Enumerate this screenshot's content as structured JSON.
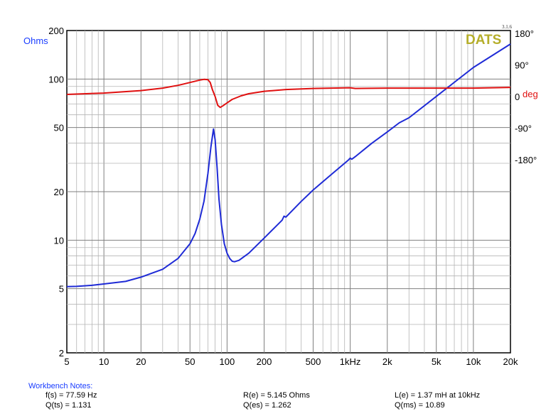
{
  "chart_data": {
    "type": "line",
    "x_scale": "log",
    "y_scale": "log",
    "left_axis_label": "Ohms",
    "right_axis_label": "deg",
    "version": "3.1.6",
    "logo": "DATS",
    "xlim": [
      5,
      20000
    ],
    "ylim": [
      2,
      200
    ],
    "phase_lim": [
      -180,
      180
    ],
    "x_ticks": [
      {
        "v": 5,
        "t": "5"
      },
      {
        "v": 10,
        "t": "10"
      },
      {
        "v": 20,
        "t": "20"
      },
      {
        "v": 50,
        "t": "50"
      },
      {
        "v": 100,
        "t": "100"
      },
      {
        "v": 200,
        "t": "200"
      },
      {
        "v": 500,
        "t": "500"
      },
      {
        "v": 1000,
        "t": "1kHz"
      },
      {
        "v": 2000,
        "t": "2k"
      },
      {
        "v": 5000,
        "t": "5k"
      },
      {
        "v": 10000,
        "t": "10k"
      },
      {
        "v": 20000,
        "t": "20k"
      }
    ],
    "y_ticks": [
      {
        "v": 2,
        "t": "2"
      },
      {
        "v": 5,
        "t": "5"
      },
      {
        "v": 10,
        "t": "10"
      },
      {
        "v": 20,
        "t": "20"
      },
      {
        "v": 50,
        "t": "50"
      },
      {
        "v": 100,
        "t": "100"
      },
      {
        "v": 200,
        "t": "200"
      }
    ],
    "phase_ticks": [
      {
        "v": 180,
        "t": "180°"
      },
      {
        "v": 90,
        "t": "90°"
      },
      {
        "v": 0,
        "t": "0"
      },
      {
        "v": -90,
        "t": "-90°"
      },
      {
        "v": -180,
        "t": "-180°"
      }
    ],
    "grid": true,
    "series": [
      {
        "axis": "left",
        "color": "#1f2bd6",
        "points": [
          [
            5,
            5.15
          ],
          [
            6,
            5.17
          ],
          [
            8,
            5.25
          ],
          [
            10,
            5.35
          ],
          [
            15,
            5.55
          ],
          [
            20,
            5.9
          ],
          [
            30,
            6.6
          ],
          [
            40,
            7.7
          ],
          [
            50,
            9.5
          ],
          [
            55,
            11
          ],
          [
            60,
            13.5
          ],
          [
            65,
            17.5
          ],
          [
            70,
            26
          ],
          [
            74,
            38
          ],
          [
            77.6,
            49
          ],
          [
            80,
            42
          ],
          [
            83,
            28
          ],
          [
            86,
            18
          ],
          [
            90,
            12.5
          ],
          [
            95,
            9.5
          ],
          [
            100,
            8.3
          ],
          [
            105,
            7.7
          ],
          [
            110,
            7.4
          ],
          [
            115,
            7.35
          ],
          [
            125,
            7.5
          ],
          [
            150,
            8.3
          ],
          [
            200,
            10.3
          ],
          [
            250,
            12.2
          ],
          [
            280,
            13.3
          ],
          [
            290,
            14.1
          ],
          [
            300,
            13.9
          ],
          [
            400,
            17.4
          ],
          [
            500,
            20.5
          ],
          [
            700,
            25.5
          ],
          [
            900,
            30
          ],
          [
            970,
            31.5
          ],
          [
            1000,
            32.3
          ],
          [
            1030,
            31.8
          ],
          [
            1100,
            33
          ],
          [
            1500,
            40
          ],
          [
            2000,
            47
          ],
          [
            2500,
            53.5
          ],
          [
            3000,
            57.5
          ],
          [
            5000,
            78
          ],
          [
            10000,
            118
          ],
          [
            20000,
            165
          ]
        ]
      },
      {
        "axis": "right",
        "color": "#e01010",
        "points": [
          [
            5,
            6
          ],
          [
            10,
            10
          ],
          [
            20,
            17
          ],
          [
            30,
            24
          ],
          [
            40,
            32
          ],
          [
            50,
            40
          ],
          [
            60,
            47
          ],
          [
            65,
            49
          ],
          [
            70,
            48
          ],
          [
            73,
            40
          ],
          [
            76,
            20
          ],
          [
            80,
            0
          ],
          [
            84,
            -25
          ],
          [
            88,
            -31
          ],
          [
            92,
            -27
          ],
          [
            100,
            -18
          ],
          [
            110,
            -8
          ],
          [
            130,
            2
          ],
          [
            150,
            8
          ],
          [
            200,
            15
          ],
          [
            300,
            20
          ],
          [
            500,
            23
          ],
          [
            1000,
            25
          ],
          [
            1100,
            23
          ],
          [
            2000,
            24
          ],
          [
            5000,
            24
          ],
          [
            10000,
            24
          ],
          [
            20000,
            26
          ]
        ]
      }
    ]
  },
  "notes": {
    "title": "Workbench Notes:",
    "fs": "f(s) = 77.59 Hz",
    "qts": "Q(ts) = 1.131",
    "re": "R(e) = 5.145 Ohms",
    "qes": "Q(es) = 1.262",
    "le": "L(e) = 1.37 mH at 10kHz",
    "qms": "Q(ms) = 10.89"
  }
}
